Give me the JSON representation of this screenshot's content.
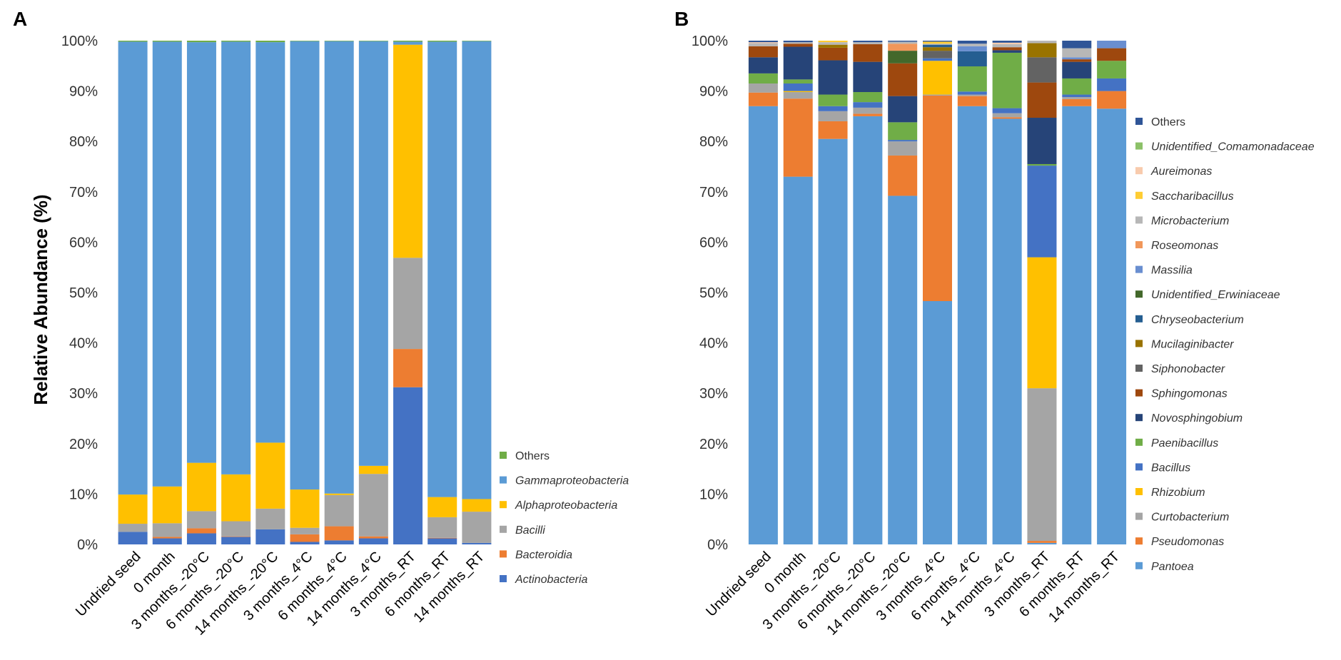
{
  "colors": {
    "Pantoea": "#5b9bd5",
    "Pseudomonas": "#ed7d31",
    "Curtobacterium": "#a5a5a5",
    "Rhizobium": "#ffc000",
    "Bacillus": "#4472c4",
    "Paenibacillus": "#70ad47",
    "Novosphingobium": "#264478",
    "Sphingomonas": "#9e480e",
    "Siphonobacter": "#636363",
    "Mucilaginibacter": "#997300",
    "Chryseobacterium": "#255e91",
    "Unidentified_Erwiniaceae": "#43682b",
    "Massilia": "#698ed0",
    "Roseomonas": "#f1975a",
    "Microbacterium": "#b7b7b7",
    "Saccharibacillus": "#ffcd33",
    "Aureimonas": "#f8cbad",
    "Unidentified_Comamonadaceae": "#8cc168",
    "OthersB": "#2f5597",
    "Actinobacteria": "#4472c4",
    "Bacteroidia": "#ed7d31",
    "Bacilli": "#a5a5a5",
    "Alphaproteobacteria": "#ffc000",
    "Gammaproteobacteria": "#5b9bd5",
    "OthersA": "#70ad47"
  },
  "chart_data": [
    {
      "panel": "A",
      "type": "bar",
      "stacked": true,
      "title": "",
      "xlabel": "",
      "ylabel": "Relative Abundance (%)",
      "ylim": [
        0,
        100
      ],
      "yticks": [
        "0%",
        "10%",
        "20%",
        "30%",
        "40%",
        "50%",
        "60%",
        "70%",
        "80%",
        "90%",
        "100%"
      ],
      "categories": [
        "Undried seed",
        "0 month",
        "3 months_-20°C",
        "6 months_-20°C",
        "14 months_-20°C",
        "3 months_4°C",
        "6 months_4°C",
        "14 months_4°C",
        "3 months_RT",
        "6 months_RT",
        "14 months_RT"
      ],
      "series": [
        {
          "name": "Actinobacteria",
          "color_key": "Actinobacteria",
          "values": [
            2.5,
            1.2,
            2.2,
            1.5,
            3.0,
            0.5,
            0.8,
            1.2,
            31.2,
            1.2,
            0.3
          ]
        },
        {
          "name": "Bacteroidia",
          "color_key": "Bacteroidia",
          "values": [
            0.0,
            0.3,
            1.0,
            0.1,
            0.0,
            1.5,
            2.8,
            0.4,
            7.6,
            0.1,
            0.0
          ]
        },
        {
          "name": "Bacilli",
          "color_key": "Bacilli",
          "values": [
            1.6,
            2.7,
            3.4,
            3.0,
            4.1,
            1.3,
            6.2,
            12.4,
            18.1,
            4.1,
            6.2
          ]
        },
        {
          "name": "Alphaproteobacteria",
          "color_key": "Alphaproteobacteria",
          "values": [
            5.8,
            7.3,
            9.6,
            9.3,
            13.1,
            7.6,
            0.3,
            1.6,
            42.3,
            4.0,
            2.5
          ]
        },
        {
          "name": "Gammaproteobacteria",
          "color_key": "Gammaproteobacteria",
          "values": [
            89.9,
            88.3,
            83.5,
            85.9,
            79.5,
            89.0,
            89.8,
            84.3,
            0.6,
            90.4,
            90.9
          ]
        },
        {
          "name": "Others",
          "color_key": "OthersA",
          "values": [
            0.2,
            0.2,
            0.3,
            0.2,
            0.3,
            0.1,
            0.1,
            0.1,
            0.2,
            0.2,
            0.1
          ]
        }
      ],
      "legend_order": [
        "Others",
        "Gammaproteobacteria",
        "Alphaproteobacteria",
        "Bacilli",
        "Bacteroidia",
        "Actinobacteria"
      ],
      "legend_italic": [
        false,
        true,
        true,
        true,
        true,
        true
      ],
      "legend_position": "right-bottom"
    },
    {
      "panel": "B",
      "type": "bar",
      "stacked": true,
      "title": "",
      "xlabel": "",
      "ylabel": "",
      "ylim": [
        0,
        100
      ],
      "yticks": [
        "0%",
        "10%",
        "20%",
        "30%",
        "40%",
        "50%",
        "60%",
        "70%",
        "80%",
        "90%",
        "100%"
      ],
      "categories": [
        "Undried seed",
        "0 month",
        "3 months_-20°C",
        "6 months_-20°C",
        "14 months_-20°C",
        "3 months_4°C",
        "6 months_4°C",
        "14 months_4°C",
        "3 months_RT",
        "6 months_RT",
        "14 months_RT"
      ],
      "series": [
        {
          "name": "Pantoea",
          "color_key": "Pantoea",
          "values": [
            87.0,
            73.0,
            80.5,
            85.0,
            69.2,
            48.3,
            87.0,
            84.5,
            0.3,
            87.0,
            86.5
          ]
        },
        {
          "name": "Pseudomonas",
          "color_key": "Pseudomonas",
          "values": [
            2.7,
            15.5,
            3.5,
            0.5,
            8.0,
            40.8,
            2.0,
            0.3,
            0.4,
            1.4,
            3.5
          ]
        },
        {
          "name": "Curtobacterium",
          "color_key": "Curtobacterium",
          "values": [
            1.8,
            1.3,
            2.0,
            1.2,
            2.8,
            0.2,
            0.3,
            0.8,
            30.3,
            0.4,
            0.0
          ]
        },
        {
          "name": "Rhizobium",
          "color_key": "Rhizobium",
          "values": [
            0.0,
            0.2,
            0.0,
            0.0,
            0.0,
            6.7,
            0.0,
            0.0,
            26.0,
            0.0,
            0.0
          ]
        },
        {
          "name": "Bacillus",
          "color_key": "Bacillus",
          "values": [
            0.0,
            1.5,
            1.0,
            1.1,
            0.3,
            0.5,
            0.6,
            1.0,
            18.2,
            0.5,
            2.5
          ]
        },
        {
          "name": "Paenibacillus",
          "color_key": "Paenibacillus",
          "values": [
            2.0,
            0.8,
            2.3,
            2.0,
            3.5,
            0.0,
            5.0,
            11.0,
            0.3,
            3.2,
            3.5
          ]
        },
        {
          "name": "Novosphingobium",
          "color_key": "Novosphingobium",
          "values": [
            3.2,
            6.5,
            6.8,
            6.0,
            5.2,
            0.0,
            0.0,
            0.5,
            9.2,
            3.3,
            0.0
          ]
        },
        {
          "name": "Sphingomonas",
          "color_key": "Sphingomonas",
          "values": [
            2.2,
            0.6,
            2.5,
            3.5,
            6.5,
            0.0,
            0.0,
            0.6,
            7.0,
            0.5,
            2.5
          ]
        },
        {
          "name": "Siphonobacter",
          "color_key": "Siphonobacter",
          "values": [
            0.0,
            0.0,
            0.0,
            0.0,
            0.0,
            1.5,
            0.0,
            0.0,
            5.0,
            0.0,
            0.0
          ]
        },
        {
          "name": "Mucilaginibacter",
          "color_key": "Mucilaginibacter",
          "values": [
            0.0,
            0.0,
            0.6,
            0.0,
            0.0,
            0.7,
            0.0,
            0.0,
            2.8,
            0.0,
            0.0
          ]
        },
        {
          "name": "Chryseobacterium",
          "color_key": "Chryseobacterium",
          "values": [
            0.0,
            0.0,
            0.0,
            0.0,
            0.0,
            0.5,
            3.0,
            0.0,
            0.0,
            0.0,
            0.0
          ]
        },
        {
          "name": "Unidentified_Erwiniaceae",
          "color_key": "Unidentified_Erwiniaceae",
          "values": [
            0.0,
            0.0,
            0.0,
            0.0,
            2.5,
            0.0,
            0.0,
            0.0,
            0.0,
            0.0,
            0.0
          ]
        },
        {
          "name": "Massilia",
          "color_key": "Massilia",
          "values": [
            0.0,
            0.0,
            0.0,
            0.0,
            0.0,
            0.0,
            1.0,
            0.0,
            0.0,
            0.4,
            1.5
          ]
        },
        {
          "name": "Roseomonas",
          "color_key": "Roseomonas",
          "values": [
            0.0,
            0.0,
            0.0,
            0.0,
            1.4,
            0.0,
            0.0,
            0.0,
            0.0,
            0.0,
            0.0
          ]
        },
        {
          "name": "Microbacterium",
          "color_key": "Microbacterium",
          "values": [
            0.6,
            0.3,
            0.5,
            0.4,
            0.4,
            0.2,
            0.5,
            0.6,
            0.5,
            1.8,
            0.0
          ]
        },
        {
          "name": "Saccharibacillus",
          "color_key": "Saccharibacillus",
          "values": [
            0.0,
            0.0,
            0.3,
            0.0,
            0.0,
            0.4,
            0.0,
            0.0,
            0.0,
            0.0,
            0.0
          ]
        },
        {
          "name": "Aureimonas",
          "color_key": "Aureimonas",
          "values": [
            0.2,
            0.0,
            0.0,
            0.0,
            0.0,
            0.0,
            0.0,
            0.3,
            0.0,
            0.0,
            0.0
          ]
        },
        {
          "name": "Unidentified_Comamonadaceae",
          "color_key": "Unidentified_Comamonadaceae",
          "values": [
            0.0,
            0.0,
            0.0,
            0.0,
            0.0,
            0.0,
            0.0,
            0.0,
            0.0,
            0.0,
            0.0
          ]
        },
        {
          "name": "Others",
          "color_key": "OthersB",
          "values": [
            0.3,
            0.3,
            0.0,
            0.3,
            0.2,
            0.2,
            0.6,
            0.4,
            0.0,
            1.5,
            0.0
          ]
        }
      ],
      "legend_order": [
        "Others",
        "Unidentified_Comamonadaceae",
        "Aureimonas",
        "Saccharibacillus",
        "Microbacterium",
        "Roseomonas",
        "Massilia",
        "Unidentified_Erwiniaceae",
        "Chryseobacterium",
        "Mucilaginibacter",
        "Siphonobacter",
        "Sphingomonas",
        "Novosphingobium",
        "Paenibacillus",
        "Bacillus",
        "Rhizobium",
        "Curtobacterium",
        "Pseudomonas",
        "Pantoea"
      ],
      "legend_italic": [
        false,
        true,
        true,
        true,
        true,
        true,
        true,
        true,
        true,
        true,
        true,
        true,
        true,
        true,
        true,
        true,
        true,
        true,
        true
      ],
      "legend_position": "right"
    }
  ],
  "panels": {
    "a_label": "A",
    "b_label": "B"
  }
}
